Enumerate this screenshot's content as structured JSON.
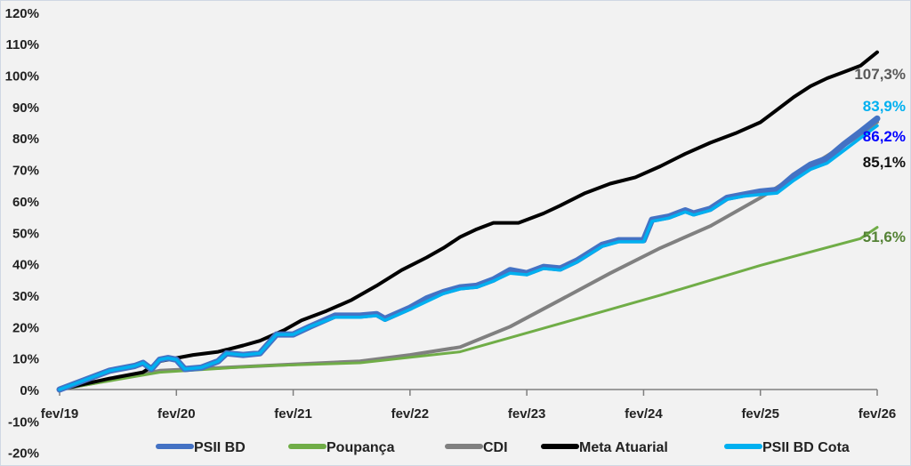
{
  "chart_data": {
    "type": "line",
    "title": "",
    "xlabel": "",
    "ylabel": "",
    "ylim": [
      -20,
      120
    ],
    "y_ticks": [
      "-20%",
      "-10%",
      "0%",
      "10%",
      "20%",
      "30%",
      "40%",
      "50%",
      "60%",
      "70%",
      "80%",
      "90%",
      "100%",
      "110%",
      "120%"
    ],
    "x_ticks": [
      "fev/19",
      "fev/20",
      "fev/21",
      "fev/22",
      "fev/23",
      "fev/24",
      "fev/25",
      "fev/26"
    ],
    "x_unit": "months since fev/19",
    "legend_position": "bottom",
    "series": [
      {
        "name": "PSII BD",
        "color": "#4472c4",
        "width": 7,
        "points": [
          [
            0,
            0
          ],
          [
            3,
            3
          ],
          [
            6,
            6
          ],
          [
            9,
            7.5
          ],
          [
            10,
            8.5
          ],
          [
            11,
            6.5
          ],
          [
            12,
            9.5
          ],
          [
            13,
            10
          ],
          [
            14,
            9.5
          ],
          [
            15,
            6.5
          ],
          [
            17,
            7
          ],
          [
            19,
            9
          ],
          [
            20,
            11.5
          ],
          [
            22,
            11
          ],
          [
            24,
            11.5
          ],
          [
            26,
            17.5
          ],
          [
            28,
            17.5
          ],
          [
            30,
            20
          ],
          [
            33,
            23.5
          ],
          [
            36,
            23.5
          ],
          [
            38,
            24
          ],
          [
            39,
            22.5
          ],
          [
            42,
            26
          ],
          [
            44,
            29
          ],
          [
            46,
            31
          ],
          [
            48,
            32.5
          ],
          [
            50,
            33
          ],
          [
            52,
            35
          ],
          [
            54,
            38
          ],
          [
            56,
            37
          ],
          [
            58,
            39
          ],
          [
            60,
            38.5
          ],
          [
            62,
            41
          ],
          [
            65,
            46
          ],
          [
            67,
            47.5
          ],
          [
            70,
            47.5
          ],
          [
            71,
            54
          ],
          [
            73,
            55
          ],
          [
            75,
            57
          ],
          [
            76,
            56
          ],
          [
            78,
            57.5
          ],
          [
            80,
            61
          ],
          [
            82,
            62
          ],
          [
            84,
            63
          ],
          [
            86,
            63.5
          ],
          [
            88,
            68
          ],
          [
            90,
            71.5
          ],
          [
            92,
            73.5
          ],
          [
            94,
            78
          ],
          [
            96,
            82
          ],
          [
            98,
            86.2
          ]
        ],
        "end_label": "86,2%",
        "end_label_color": "#0000ff"
      },
      {
        "name": "Poupança",
        "color": "#70ad47",
        "width": 3,
        "points": [
          [
            0,
            0
          ],
          [
            12,
            5.5
          ],
          [
            24,
            7.5
          ],
          [
            36,
            8.5
          ],
          [
            48,
            12
          ],
          [
            60,
            21
          ],
          [
            72,
            30
          ],
          [
            84,
            39.5
          ],
          [
            96,
            48
          ],
          [
            98,
            51.6
          ]
        ],
        "end_label": "51,6%",
        "end_label_color": "#548235"
      },
      {
        "name": "CDI",
        "color": "#808080",
        "width": 4,
        "points": [
          [
            0,
            0
          ],
          [
            12,
            6
          ],
          [
            24,
            7.5
          ],
          [
            36,
            9
          ],
          [
            42,
            11
          ],
          [
            48,
            13.5
          ],
          [
            54,
            20
          ],
          [
            60,
            28.5
          ],
          [
            66,
            37
          ],
          [
            72,
            45
          ],
          [
            78,
            52
          ],
          [
            84,
            61
          ],
          [
            90,
            71
          ],
          [
            96,
            81
          ],
          [
            98,
            85.1
          ]
        ],
        "end_label": "85,1%",
        "end_label_color": "#111111"
      },
      {
        "name": "Meta Atuarial",
        "color": "#000000",
        "width": 4,
        "points": [
          [
            0,
            0
          ],
          [
            6,
            3.5
          ],
          [
            10,
            5.5
          ],
          [
            12,
            9
          ],
          [
            14,
            10
          ],
          [
            16,
            11
          ],
          [
            19,
            12
          ],
          [
            22,
            14
          ],
          [
            24,
            15.5
          ],
          [
            27,
            19
          ],
          [
            29,
            22
          ],
          [
            32,
            25
          ],
          [
            35,
            28.5
          ],
          [
            38,
            33
          ],
          [
            41,
            38
          ],
          [
            44,
            42
          ],
          [
            46,
            45
          ],
          [
            48,
            48.5
          ],
          [
            50,
            51
          ],
          [
            52,
            53
          ],
          [
            55,
            53
          ],
          [
            58,
            56
          ],
          [
            60,
            58.5
          ],
          [
            63,
            62.5
          ],
          [
            66,
            65.5
          ],
          [
            69,
            67.5
          ],
          [
            72,
            71
          ],
          [
            75,
            75
          ],
          [
            78,
            78.5
          ],
          [
            81,
            81.5
          ],
          [
            84,
            85
          ],
          [
            86,
            89
          ],
          [
            88,
            93
          ],
          [
            90,
            96.5
          ],
          [
            92,
            99
          ],
          [
            94,
            101
          ],
          [
            96,
            103
          ],
          [
            98,
            107.3
          ]
        ],
        "end_label": "107,3%",
        "end_label_color": "#595959"
      },
      {
        "name": "PSII BD Cota",
        "color": "#00b0f0",
        "width": 3.5,
        "points": [
          [
            0,
            0
          ],
          [
            3,
            3
          ],
          [
            6,
            6
          ],
          [
            9,
            7.5
          ],
          [
            10,
            8.5
          ],
          [
            11,
            6.5
          ],
          [
            12,
            9.5
          ],
          [
            13,
            10
          ],
          [
            14,
            9.5
          ],
          [
            15,
            6.5
          ],
          [
            17,
            7
          ],
          [
            19,
            9
          ],
          [
            20,
            11.5
          ],
          [
            22,
            11
          ],
          [
            24,
            11.5
          ],
          [
            26,
            17.5
          ],
          [
            28,
            17.5
          ],
          [
            30,
            20
          ],
          [
            33,
            23
          ],
          [
            36,
            23
          ],
          [
            38,
            23.5
          ],
          [
            39,
            22
          ],
          [
            42,
            25.5
          ],
          [
            44,
            28
          ],
          [
            46,
            30.5
          ],
          [
            48,
            32
          ],
          [
            50,
            32.5
          ],
          [
            52,
            34.5
          ],
          [
            54,
            37
          ],
          [
            56,
            36.5
          ],
          [
            58,
            38.5
          ],
          [
            60,
            38
          ],
          [
            62,
            40.5
          ],
          [
            65,
            45.5
          ],
          [
            67,
            47
          ],
          [
            70,
            47
          ],
          [
            71,
            53.5
          ],
          [
            73,
            54.5
          ],
          [
            75,
            56.5
          ],
          [
            76,
            55.5
          ],
          [
            78,
            57
          ],
          [
            80,
            60.5
          ],
          [
            82,
            61.5
          ],
          [
            84,
            62
          ],
          [
            86,
            62.5
          ],
          [
            88,
            66.5
          ],
          [
            90,
            70
          ],
          [
            92,
            72
          ],
          [
            94,
            76
          ],
          [
            96,
            80
          ],
          [
            98,
            83.9
          ]
        ],
        "end_label": "83,9%",
        "end_label_color": "#00b0f0"
      }
    ]
  }
}
